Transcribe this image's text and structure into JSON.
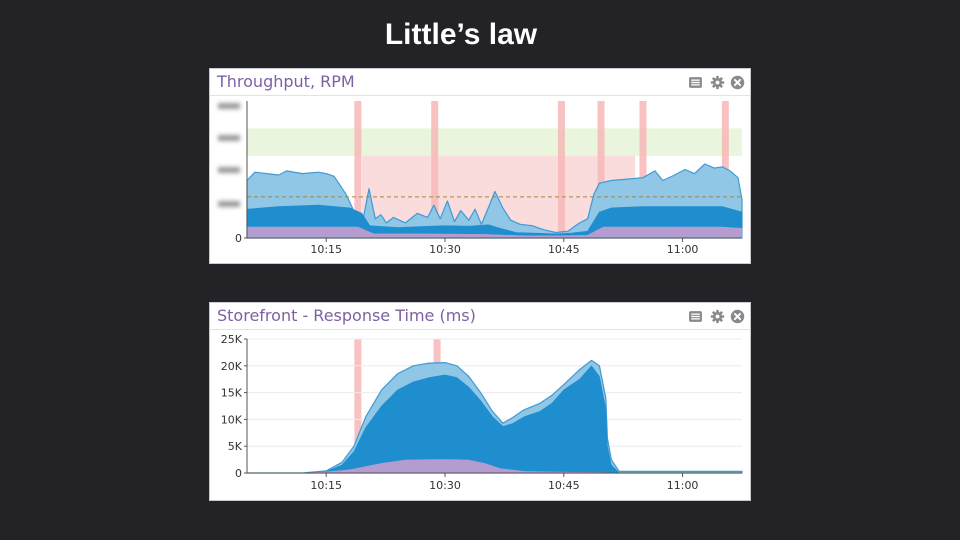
{
  "slide": {
    "title": "Little’s law"
  },
  "colors": {
    "background": "#232226",
    "title_purple": "#7f5fa3",
    "band_green": "#e9f5dc",
    "band_red": "#fbdcdc",
    "marker_red": "#f7b7b7",
    "series_light": "#90c6e6",
    "series_dark": "#1f8ecf",
    "series_purple": "#b59ccf",
    "threshold_line": "#9a8a44"
  },
  "panels": [
    {
      "title": "Throughput, RPM",
      "toolbar": [
        "list-icon",
        "gear-icon",
        "close-icon"
      ]
    },
    {
      "title": "Storefront - Response Time (ms)",
      "toolbar": [
        "list-icon",
        "gear-icon",
        "close-icon"
      ]
    }
  ],
  "chart_data": [
    {
      "type": "area",
      "title": "Throughput, RPM",
      "x_unit": "minutes",
      "xlim": [
        5,
        67.5
      ],
      "ylim": [
        0,
        5000
      ],
      "x_tick_labels": [
        {
          "t": 15,
          "label": "10:15"
        },
        {
          "t": 30,
          "label": "10:30"
        },
        {
          "t": 45,
          "label": "10:45"
        },
        {
          "t": 60,
          "label": "11:00"
        }
      ],
      "y_tick_labels": [
        {
          "v": 0,
          "label": "0"
        }
      ],
      "bands": [
        {
          "from": 3000,
          "to": 4000,
          "color": "#e9f5dc"
        },
        {
          "from": 0,
          "to": 3000,
          "color": "#fbdcdc",
          "x_from": 19.5,
          "x_to": 54
        }
      ],
      "threshold": 1500,
      "event_markers": [
        19,
        28.7,
        44.7,
        49.7,
        55,
        65.4
      ],
      "series": [
        {
          "name": "purple",
          "color": "#b59ccf",
          "x": [
            5,
            19,
            21,
            28,
            35,
            40,
            45,
            48,
            49,
            50,
            55,
            60,
            65,
            67.5
          ],
          "y": [
            400,
            400,
            150,
            150,
            130,
            80,
            80,
            100,
            250,
            400,
            400,
            400,
            400,
            350
          ]
        },
        {
          "name": "dark blue",
          "color": "#1f8ecf",
          "x": [
            5,
            9,
            14,
            18,
            19.5,
            20.5,
            24,
            27,
            30,
            33,
            35.5,
            37,
            39,
            42,
            44,
            46,
            48,
            49.5,
            51,
            55,
            60,
            65,
            67.5
          ],
          "y": [
            1050,
            1150,
            1200,
            1100,
            900,
            450,
            380,
            420,
            450,
            430,
            480,
            350,
            200,
            170,
            150,
            180,
            250,
            950,
            1100,
            1150,
            1150,
            1150,
            950
          ]
        },
        {
          "name": "light blue",
          "color": "#90c6e6",
          "x": [
            5,
            6,
            9,
            10,
            12,
            14,
            15,
            16,
            17.5,
            18.8,
            19.6,
            20.4,
            21.2,
            21.9,
            22.6,
            23.5,
            25,
            26.5,
            27.8,
            28.6,
            29.4,
            30.3,
            31.2,
            32,
            33,
            33.8,
            34.6,
            35.6,
            36.3,
            37.3,
            38.3,
            39.5,
            41,
            42.5,
            44,
            45.5,
            47,
            48,
            48.8,
            49.5,
            51,
            53,
            55,
            56.5,
            57.5,
            59,
            60.3,
            61.5,
            62.8,
            64,
            65,
            66,
            67,
            67.5
          ],
          "y": [
            2100,
            2400,
            2300,
            2450,
            2350,
            2400,
            2350,
            2250,
            1600,
            800,
            600,
            1800,
            700,
            850,
            550,
            750,
            550,
            900,
            750,
            1200,
            700,
            1350,
            600,
            1000,
            650,
            1050,
            500,
            1200,
            1700,
            1100,
            650,
            500,
            450,
            300,
            200,
            250,
            550,
            700,
            1600,
            2000,
            2100,
            2150,
            2200,
            2450,
            2100,
            2300,
            2500,
            2350,
            2700,
            2550,
            2600,
            2450,
            2200,
            1400
          ]
        }
      ]
    },
    {
      "type": "area",
      "title": "Storefront - Response Time (ms)",
      "x_unit": "minutes",
      "xlim": [
        5,
        67.5
      ],
      "ylim": [
        0,
        25000
      ],
      "x_tick_labels": [
        {
          "t": 15,
          "label": "10:15"
        },
        {
          "t": 30,
          "label": "10:30"
        },
        {
          "t": 45,
          "label": "10:45"
        },
        {
          "t": 60,
          "label": "11:00"
        }
      ],
      "y_tick_labels": [
        {
          "v": 0,
          "label": "0"
        },
        {
          "v": 5000,
          "label": "5K"
        },
        {
          "v": 10000,
          "label": "10K"
        },
        {
          "v": 15000,
          "label": "15K"
        },
        {
          "v": 20000,
          "label": "20K"
        },
        {
          "v": 25000,
          "label": "25K"
        }
      ],
      "event_markers": [
        19,
        29
      ],
      "series": [
        {
          "name": "purple",
          "color": "#b59ccf",
          "x": [
            5,
            12,
            15,
            18,
            22,
            25,
            28,
            31,
            33,
            35,
            37,
            40,
            45,
            48,
            50,
            52,
            67.5
          ],
          "y": [
            0,
            0,
            200,
            600,
            1800,
            2400,
            2500,
            2500,
            2400,
            1800,
            800,
            300,
            150,
            120,
            100,
            0,
            0
          ]
        },
        {
          "name": "dark blue",
          "color": "#1f8ecf",
          "x": [
            5,
            12,
            15,
            17,
            18.5,
            20,
            22,
            24,
            26,
            28,
            30,
            31.5,
            33,
            34.5,
            36,
            37.3,
            38.5,
            40,
            42,
            43.5,
            45,
            47,
            48.5,
            49.5,
            50.3,
            50.5,
            51,
            52,
            67.5
          ],
          "y": [
            0,
            0,
            300,
            1500,
            4000,
            8500,
            12500,
            15500,
            17000,
            17800,
            18300,
            17800,
            16000,
            13500,
            10500,
            8700,
            9200,
            10500,
            11500,
            13000,
            15500,
            17500,
            20000,
            18000,
            12000,
            5000,
            1500,
            0,
            0
          ]
        },
        {
          "name": "light blue",
          "color": "#90c6e6",
          "x": [
            5,
            12,
            15,
            17,
            18.5,
            20,
            22,
            24,
            26,
            28,
            30,
            31.5,
            33,
            34.5,
            36,
            37.3,
            38.5,
            40,
            42,
            43.5,
            45,
            47,
            48.5,
            49.5,
            50.3,
            50.5,
            51,
            52,
            67.5
          ],
          "y": [
            0,
            0,
            400,
            2000,
            5000,
            10500,
            15500,
            18500,
            20000,
            20500,
            20600,
            20000,
            18000,
            15000,
            11500,
            9300,
            10300,
            11800,
            13000,
            14500,
            16500,
            19300,
            21000,
            20000,
            14000,
            6500,
            2500,
            300,
            300
          ]
        }
      ]
    }
  ]
}
